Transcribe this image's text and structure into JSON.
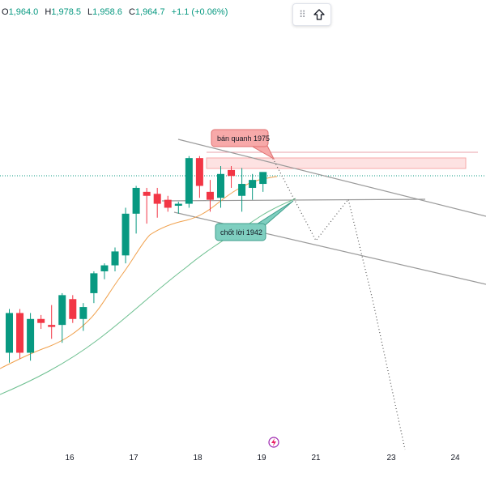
{
  "ohlc": {
    "o_label": "O",
    "o_value": "1,964.0",
    "h_label": "H",
    "h_value": "1,978.5",
    "l_label": "L",
    "l_value": "1,958.6",
    "c_label": "C",
    "c_value": "1,964.7",
    "change": "+1.1 (+0.06%)"
  },
  "toolbar": {
    "grip_icon": "drag-grip-icon",
    "arrow_icon": "arrow-up-outline-icon"
  },
  "annotations": {
    "sell": "bán quanh 1975",
    "take_profit": "chốt lời 1942"
  },
  "colors": {
    "up": "#089981",
    "down": "#f23645",
    "sell_fill": "#f7a9a9",
    "tp_fill": "#7fcfc0",
    "ma_fast": "#f0a04b",
    "ma_slow": "#6cbf8f"
  },
  "chart_data": {
    "type": "candlestick",
    "x_tick_labels": [
      "16",
      "17",
      "18",
      "19",
      "21",
      "23",
      "24"
    ],
    "candles": [
      {
        "o": 1925,
        "h": 1947,
        "l": 1920,
        "c": 1945
      },
      {
        "o": 1945,
        "h": 1947,
        "l": 1922,
        "c": 1925
      },
      {
        "o": 1925,
        "h": 1945,
        "l": 1921,
        "c": 1942
      },
      {
        "o": 1942,
        "h": 1944,
        "l": 1937,
        "c": 1940
      },
      {
        "o": 1939,
        "h": 1949,
        "l": 1932,
        "c": 1938
      },
      {
        "o": 1939,
        "h": 1955,
        "l": 1930,
        "c": 1954
      },
      {
        "o": 1952,
        "h": 1954,
        "l": 1940,
        "c": 1942
      },
      {
        "o": 1942,
        "h": 1950,
        "l": 1936,
        "c": 1948
      },
      {
        "o": 1955,
        "h": 1966,
        "l": 1950,
        "c": 1965
      },
      {
        "o": 1966,
        "h": 1970,
        "l": 1962,
        "c": 1969
      },
      {
        "o": 1969,
        "h": 1978,
        "l": 1966,
        "c": 1976
      },
      {
        "o": 1974,
        "h": 1998,
        "l": 1970,
        "c": 1995
      },
      {
        "o": 1995,
        "h": 2009,
        "l": 1985,
        "c": 2008
      },
      {
        "o": 2006,
        "h": 2008,
        "l": 1990,
        "c": 2004
      },
      {
        "o": 2005,
        "h": 2008,
        "l": 1993,
        "c": 2000
      },
      {
        "o": 2002,
        "h": 2004,
        "l": 1996,
        "c": 1998
      },
      {
        "o": 1999,
        "h": 2001,
        "l": 1995,
        "c": 2000
      },
      {
        "o": 2000,
        "h": 2024,
        "l": 1998,
        "c": 2023
      },
      {
        "o": 2023,
        "h": 2024,
        "l": 2003,
        "c": 2009
      },
      {
        "o": 2006,
        "h": 2012,
        "l": 1996,
        "c": 2002
      },
      {
        "o": 2003,
        "h": 2019,
        "l": 1998,
        "c": 2015
      },
      {
        "o": 2017,
        "h": 2019,
        "l": 2008,
        "c": 2014
      },
      {
        "o": 2004,
        "h": 2018,
        "l": 1996,
        "c": 2010
      },
      {
        "o": 2008,
        "h": 2015,
        "l": 2002,
        "c": 2012
      },
      {
        "o": 2010,
        "h": 2015,
        "l": 2006,
        "c": 2016
      }
    ]
  }
}
